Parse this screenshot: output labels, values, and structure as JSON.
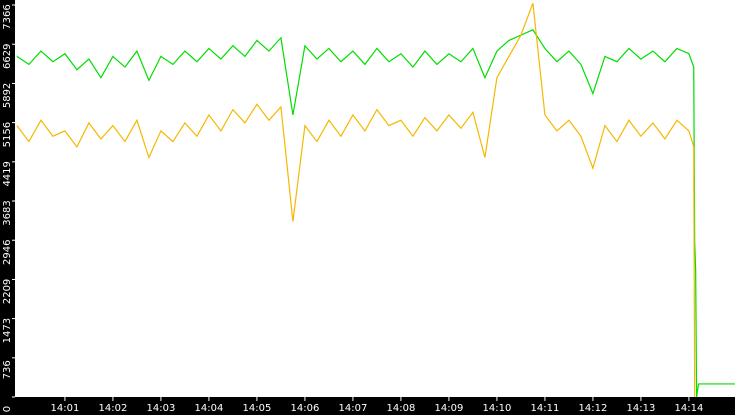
{
  "chart_data": {
    "type": "line",
    "xlim": [
      -0.04,
      14.96
    ],
    "ylim": [
      0,
      7366
    ],
    "xticks": [
      {
        "value": 1,
        "label": "14:01"
      },
      {
        "value": 2,
        "label": "14:02"
      },
      {
        "value": 3,
        "label": "14:03"
      },
      {
        "value": 4,
        "label": "14:04"
      },
      {
        "value": 5,
        "label": "14:05"
      },
      {
        "value": 6,
        "label": "14:06"
      },
      {
        "value": 7,
        "label": "14:07"
      },
      {
        "value": 8,
        "label": "14:08"
      },
      {
        "value": 9,
        "label": "14:09"
      },
      {
        "value": 10,
        "label": "14:10"
      },
      {
        "value": 11,
        "label": "14:11"
      },
      {
        "value": 12,
        "label": "14:12"
      },
      {
        "value": 13,
        "label": "14:13"
      },
      {
        "value": 14,
        "label": "14:14"
      }
    ],
    "yticks": [
      0,
      736,
      1473,
      2209,
      2946,
      3683,
      4419,
      5156,
      5892,
      6629,
      7366
    ],
    "series": [
      {
        "color": "#00dd00",
        "x": [
          0,
          0.25,
          0.5,
          0.75,
          1,
          1.25,
          1.5,
          1.75,
          2,
          2.25,
          2.5,
          2.75,
          3,
          3.25,
          3.5,
          3.75,
          4,
          4.25,
          4.5,
          4.75,
          5,
          5.25,
          5.5,
          5.75,
          6,
          6.25,
          6.5,
          6.75,
          7,
          7.25,
          7.5,
          7.75,
          8,
          8.25,
          8.5,
          8.75,
          9,
          9.25,
          9.5,
          9.75,
          10,
          10.25,
          10.5,
          10.75,
          11,
          11.25,
          11.5,
          11.75,
          12,
          12.25,
          12.5,
          12.75,
          13,
          13.25,
          13.5,
          13.75,
          14,
          14.1,
          14.12,
          14.14,
          14.16,
          14.2,
          14.96
        ],
        "values": [
          6400,
          6250,
          6500,
          6300,
          6450,
          6150,
          6350,
          6000,
          6400,
          6200,
          6500,
          5950,
          6400,
          6250,
          6500,
          6300,
          6550,
          6350,
          6600,
          6400,
          6700,
          6500,
          6750,
          5300,
          6600,
          6350,
          6550,
          6300,
          6500,
          6250,
          6550,
          6300,
          6450,
          6200,
          6500,
          6250,
          6450,
          6300,
          6550,
          6000,
          6500,
          6700,
          6800,
          6900,
          6550,
          6300,
          6500,
          6250,
          5700,
          6400,
          6300,
          6550,
          6350,
          6500,
          6300,
          6550,
          6450,
          6200,
          2900,
          2400,
          0,
          245,
          245
        ]
      },
      {
        "color": "#f5b800",
        "x": [
          0,
          0.25,
          0.5,
          0.75,
          1,
          1.25,
          1.5,
          1.75,
          2,
          2.25,
          2.5,
          2.75,
          3,
          3.25,
          3.5,
          3.75,
          4,
          4.25,
          4.5,
          4.75,
          5,
          5.25,
          5.5,
          5.75,
          6,
          6.25,
          6.5,
          6.75,
          7,
          7.25,
          7.5,
          7.75,
          8,
          8.25,
          8.5,
          8.75,
          9,
          9.25,
          9.5,
          9.75,
          10,
          10.25,
          10.5,
          10.75,
          11,
          11.25,
          11.5,
          11.75,
          12,
          12.25,
          12.5,
          12.75,
          13,
          13.25,
          13.5,
          13.75,
          14,
          14.1,
          14.12
        ],
        "values": [
          5100,
          4800,
          5200,
          4900,
          5000,
          4700,
          5150,
          4850,
          5100,
          4800,
          5200,
          4500,
          5000,
          4800,
          5150,
          4900,
          5300,
          5000,
          5400,
          5150,
          5500,
          5200,
          5450,
          3300,
          5100,
          4800,
          5200,
          4900,
          5300,
          5000,
          5400,
          5100,
          5200,
          4900,
          5250,
          5000,
          5300,
          5050,
          5350,
          4500,
          6000,
          6400,
          6800,
          7400,
          5300,
          5000,
          5200,
          4900,
          4300,
          5100,
          4800,
          5200,
          4900,
          5150,
          4850,
          5200,
          5000,
          4700,
          0
        ]
      }
    ]
  }
}
